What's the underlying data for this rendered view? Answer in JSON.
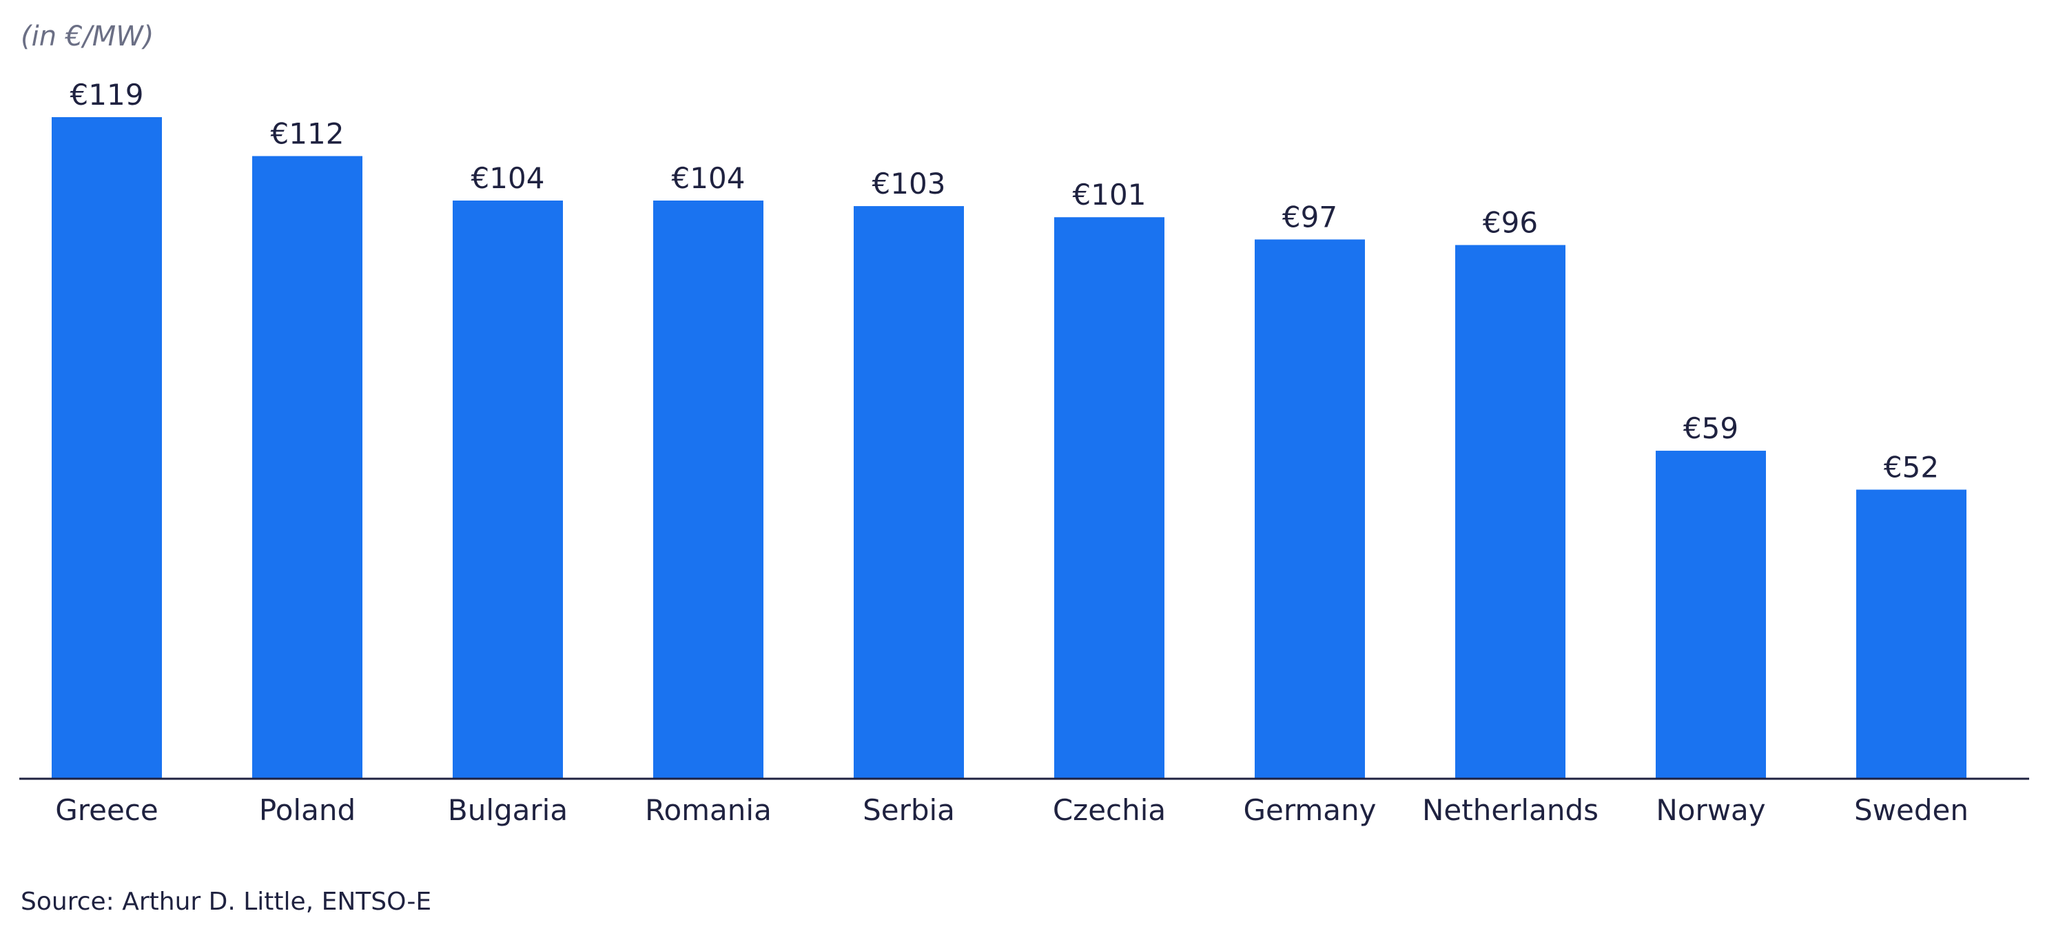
{
  "unit_label": "(in €/MW)",
  "source": "Source: Arthur D. Little, ENTSO-E",
  "colors": {
    "bar": "#1a73f0",
    "axis": "#1f2240",
    "text": "#1f2240"
  },
  "chart_data": {
    "type": "bar",
    "categories": [
      "Greece",
      "Poland",
      "Bulgaria",
      "Romania",
      "Serbia",
      "Czechia",
      "Germany",
      "Netherlands",
      "Norway",
      "Sweden"
    ],
    "values": [
      119,
      112,
      104,
      104,
      103,
      101,
      97,
      96,
      59,
      52
    ],
    "data_labels": [
      "€119",
      "€112",
      "€104",
      "€104",
      "€103",
      "€101",
      "€97",
      "€96",
      "€59",
      "€52"
    ],
    "ylim": [
      0,
      119
    ],
    "grid": false,
    "legend": "none"
  }
}
